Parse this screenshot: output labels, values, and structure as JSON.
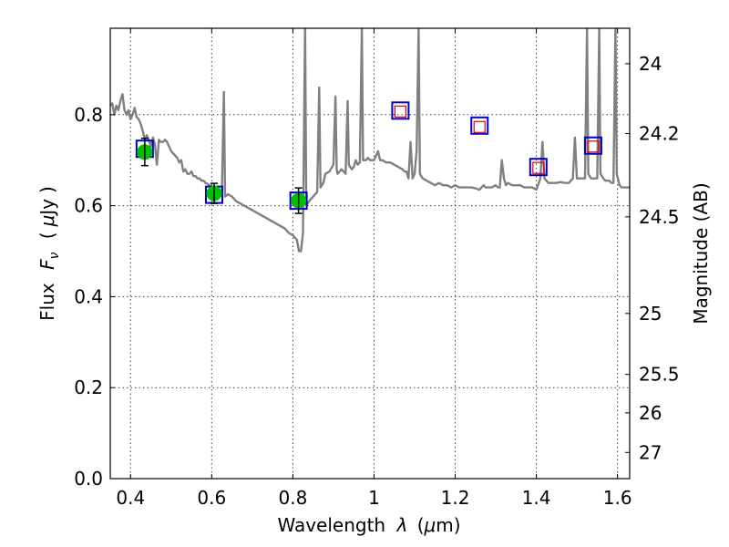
{
  "chart_data": {
    "type": "line",
    "xlabel": {
      "text_prefix": "Wavelength",
      "symbol": "λ",
      "unit_open": "(",
      "unit_mu": "μ",
      "unit_rest": "m)"
    },
    "ylabel": {
      "text_prefix": "Flux",
      "symbol": "F",
      "subscript": "ν",
      "unit_open": "(",
      "unit_mu": "μ",
      "unit_rest": "Jy",
      "unit_close": ")"
    },
    "ylabel_right": "Magnitude (AB)",
    "xlim": [
      0.35,
      1.63
    ],
    "ylim": [
      0.0,
      0.99
    ],
    "x_ticks": [
      {
        "value": 0.4,
        "label": "0.4"
      },
      {
        "value": 0.6,
        "label": "0.6"
      },
      {
        "value": 0.8,
        "label": "0.8"
      },
      {
        "value": 1.0,
        "label": "1"
      },
      {
        "value": 1.2,
        "label": "1.2"
      },
      {
        "value": 1.4,
        "label": "1.4"
      },
      {
        "value": 1.6,
        "label": "1.6"
      }
    ],
    "y_ticks": [
      {
        "value": 0.0,
        "label": "0.0"
      },
      {
        "value": 0.2,
        "label": "0.2"
      },
      {
        "value": 0.4,
        "label": "0.4"
      },
      {
        "value": 0.6,
        "label": "0.6"
      },
      {
        "value": 0.8,
        "label": "0.8"
      }
    ],
    "mag_ticks": [
      {
        "value": 24,
        "label": "24"
      },
      {
        "value": 24.2,
        "label": "24.2"
      },
      {
        "value": 24.5,
        "label": "24.5"
      },
      {
        "value": 25,
        "label": "25"
      },
      {
        "value": 25.5,
        "label": "25.5"
      },
      {
        "value": 26,
        "label": "26"
      },
      {
        "value": 27,
        "label": "27"
      }
    ],
    "grid": true,
    "spectrum": {
      "color": "#808080",
      "points": [
        [
          0.35,
          0.82
        ],
        [
          0.355,
          0.825
        ],
        [
          0.36,
          0.8
        ],
        [
          0.365,
          0.82
        ],
        [
          0.37,
          0.81
        ],
        [
          0.375,
          0.83
        ],
        [
          0.38,
          0.845
        ],
        [
          0.385,
          0.81
        ],
        [
          0.39,
          0.8
        ],
        [
          0.395,
          0.81
        ],
        [
          0.4,
          0.79
        ],
        [
          0.405,
          0.8
        ],
        [
          0.41,
          0.815
        ],
        [
          0.415,
          0.795
        ],
        [
          0.42,
          0.79
        ],
        [
          0.425,
          0.78
        ],
        [
          0.43,
          0.765
        ],
        [
          0.435,
          0.745
        ],
        [
          0.44,
          0.755
        ],
        [
          0.445,
          0.745
        ],
        [
          0.45,
          0.73
        ],
        [
          0.455,
          0.75
        ],
        [
          0.46,
          0.735
        ],
        [
          0.465,
          0.69
        ],
        [
          0.47,
          0.745
        ],
        [
          0.475,
          0.74
        ],
        [
          0.48,
          0.74
        ],
        [
          0.485,
          0.745
        ],
        [
          0.49,
          0.74
        ],
        [
          0.495,
          0.73
        ],
        [
          0.5,
          0.72
        ],
        [
          0.505,
          0.715
        ],
        [
          0.51,
          0.71
        ],
        [
          0.515,
          0.705
        ],
        [
          0.52,
          0.695
        ],
        [
          0.525,
          0.7
        ],
        [
          0.53,
          0.675
        ],
        [
          0.535,
          0.68
        ],
        [
          0.54,
          0.67
        ],
        [
          0.545,
          0.67
        ],
        [
          0.55,
          0.675
        ],
        [
          0.555,
          0.665
        ],
        [
          0.56,
          0.665
        ],
        [
          0.565,
          0.66
        ],
        [
          0.57,
          0.66
        ],
        [
          0.575,
          0.655
        ],
        [
          0.58,
          0.655
        ],
        [
          0.585,
          0.65
        ],
        [
          0.59,
          0.648
        ],
        [
          0.595,
          0.645
        ],
        [
          0.6,
          0.64
        ],
        [
          0.605,
          0.64
        ],
        [
          0.61,
          0.635
        ],
        [
          0.615,
          0.635
        ],
        [
          0.62,
          0.632
        ],
        [
          0.625,
          0.63
        ],
        [
          0.63,
          0.85
        ],
        [
          0.633,
          0.62
        ],
        [
          0.64,
          0.625
        ],
        [
          0.65,
          0.62
        ],
        [
          0.66,
          0.61
        ],
        [
          0.67,
          0.605
        ],
        [
          0.68,
          0.6
        ],
        [
          0.69,
          0.595
        ],
        [
          0.7,
          0.59
        ],
        [
          0.71,
          0.585
        ],
        [
          0.72,
          0.58
        ],
        [
          0.73,
          0.575
        ],
        [
          0.74,
          0.57
        ],
        [
          0.75,
          0.565
        ],
        [
          0.76,
          0.56
        ],
        [
          0.77,
          0.555
        ],
        [
          0.78,
          0.55
        ],
        [
          0.79,
          0.54
        ],
        [
          0.8,
          0.535
        ],
        [
          0.81,
          0.525
        ],
        [
          0.815,
          0.5
        ],
        [
          0.82,
          0.5
        ],
        [
          0.825,
          0.54
        ],
        [
          0.83,
          1.0
        ],
        [
          0.833,
          0.6
        ],
        [
          0.84,
          0.61
        ],
        [
          0.845,
          0.615
        ],
        [
          0.85,
          0.62
        ],
        [
          0.855,
          0.625
        ],
        [
          0.86,
          0.63
        ],
        [
          0.865,
          0.86
        ],
        [
          0.868,
          0.64
        ],
        [
          0.875,
          0.65
        ],
        [
          0.88,
          0.67
        ],
        [
          0.89,
          0.675
        ],
        [
          0.9,
          0.69
        ],
        [
          0.905,
          0.84
        ],
        [
          0.908,
          0.68
        ],
        [
          0.91,
          0.67
        ],
        [
          0.92,
          0.68
        ],
        [
          0.93,
          0.67
        ],
        [
          0.935,
          0.83
        ],
        [
          0.938,
          0.69
        ],
        [
          0.945,
          0.68
        ],
        [
          0.95,
          0.685
        ],
        [
          0.955,
          0.7
        ],
        [
          0.96,
          0.69
        ],
        [
          0.965,
          0.695
        ],
        [
          0.97,
          0.99
        ],
        [
          0.973,
          0.7
        ],
        [
          0.98,
          0.7
        ],
        [
          0.985,
          0.705
        ],
        [
          0.99,
          0.7
        ],
        [
          0.995,
          0.7
        ],
        [
          1.0,
          0.7
        ],
        [
          1.005,
          0.71
        ],
        [
          1.01,
          0.72
        ],
        [
          1.015,
          0.7
        ],
        [
          1.02,
          0.7
        ],
        [
          1.03,
          0.695
        ],
        [
          1.04,
          0.695
        ],
        [
          1.05,
          0.69
        ],
        [
          1.06,
          0.685
        ],
        [
          1.07,
          0.68
        ],
        [
          1.075,
          0.675
        ],
        [
          1.08,
          0.675
        ],
        [
          1.085,
          0.66
        ],
        [
          1.09,
          0.74
        ],
        [
          1.095,
          0.66
        ],
        [
          1.1,
          0.67
        ],
        [
          1.105,
          0.72
        ],
        [
          1.11,
          0.99
        ],
        [
          1.113,
          0.67
        ],
        [
          1.12,
          0.66
        ],
        [
          1.13,
          0.655
        ],
        [
          1.14,
          0.65
        ],
        [
          1.15,
          0.645
        ],
        [
          1.16,
          0.65
        ],
        [
          1.17,
          0.645
        ],
        [
          1.18,
          0.645
        ],
        [
          1.19,
          0.64
        ],
        [
          1.2,
          0.645
        ],
        [
          1.21,
          0.64
        ],
        [
          1.22,
          0.64
        ],
        [
          1.23,
          0.64
        ],
        [
          1.24,
          0.64
        ],
        [
          1.25,
          0.638
        ],
        [
          1.26,
          0.635
        ],
        [
          1.27,
          0.645
        ],
        [
          1.275,
          0.64
        ],
        [
          1.28,
          0.64
        ],
        [
          1.29,
          0.64
        ],
        [
          1.3,
          0.645
        ],
        [
          1.305,
          0.64
        ],
        [
          1.31,
          0.64
        ],
        [
          1.315,
          0.7
        ],
        [
          1.32,
          0.66
        ],
        [
          1.325,
          0.645
        ],
        [
          1.33,
          0.65
        ],
        [
          1.34,
          0.645
        ],
        [
          1.35,
          0.645
        ],
        [
          1.36,
          0.645
        ],
        [
          1.37,
          0.64
        ],
        [
          1.38,
          0.64
        ],
        [
          1.39,
          0.64
        ],
        [
          1.4,
          0.635
        ],
        [
          1.41,
          0.66
        ],
        [
          1.415,
          0.74
        ],
        [
          1.42,
          0.66
        ],
        [
          1.43,
          0.65
        ],
        [
          1.44,
          0.65
        ],
        [
          1.45,
          0.65
        ],
        [
          1.46,
          0.652
        ],
        [
          1.47,
          0.65
        ],
        [
          1.48,
          0.65
        ],
        [
          1.49,
          0.66
        ],
        [
          1.495,
          0.75
        ],
        [
          1.5,
          0.66
        ],
        [
          1.505,
          0.66
        ],
        [
          1.51,
          0.66
        ],
        [
          1.52,
          0.66
        ],
        [
          1.525,
          0.99
        ],
        [
          1.528,
          0.67
        ],
        [
          1.535,
          0.66
        ],
        [
          1.54,
          0.66
        ],
        [
          1.55,
          0.66
        ],
        [
          1.555,
          0.99
        ],
        [
          1.558,
          0.67
        ],
        [
          1.565,
          0.66
        ],
        [
          1.57,
          0.655
        ],
        [
          1.58,
          0.655
        ],
        [
          1.585,
          0.65
        ],
        [
          1.59,
          0.65
        ],
        [
          1.595,
          0.99
        ],
        [
          1.598,
          0.67
        ],
        [
          1.605,
          0.645
        ],
        [
          1.61,
          0.64
        ],
        [
          1.62,
          0.64
        ],
        [
          1.63,
          0.64
        ]
      ]
    },
    "observed": {
      "color": "#00c000",
      "points": [
        {
          "x": 0.435,
          "y": 0.718,
          "err": 0.03
        },
        {
          "x": 0.606,
          "y": 0.627,
          "err": 0.022
        },
        {
          "x": 0.814,
          "y": 0.611,
          "err": 0.028
        }
      ]
    },
    "model_blue": {
      "color": "#0000cc",
      "points": [
        {
          "x": 0.435,
          "y": 0.725
        },
        {
          "x": 0.606,
          "y": 0.624
        },
        {
          "x": 0.814,
          "y": 0.611
        },
        {
          "x": 1.065,
          "y": 0.809
        },
        {
          "x": 1.26,
          "y": 0.776
        },
        {
          "x": 1.405,
          "y": 0.685
        },
        {
          "x": 1.54,
          "y": 0.732
        }
      ]
    },
    "model_red": {
      "color": "#e00000",
      "points": [
        {
          "x": 1.065,
          "y": 0.807
        },
        {
          "x": 1.26,
          "y": 0.773
        },
        {
          "x": 1.405,
          "y": 0.683
        },
        {
          "x": 1.54,
          "y": 0.73
        }
      ]
    }
  }
}
